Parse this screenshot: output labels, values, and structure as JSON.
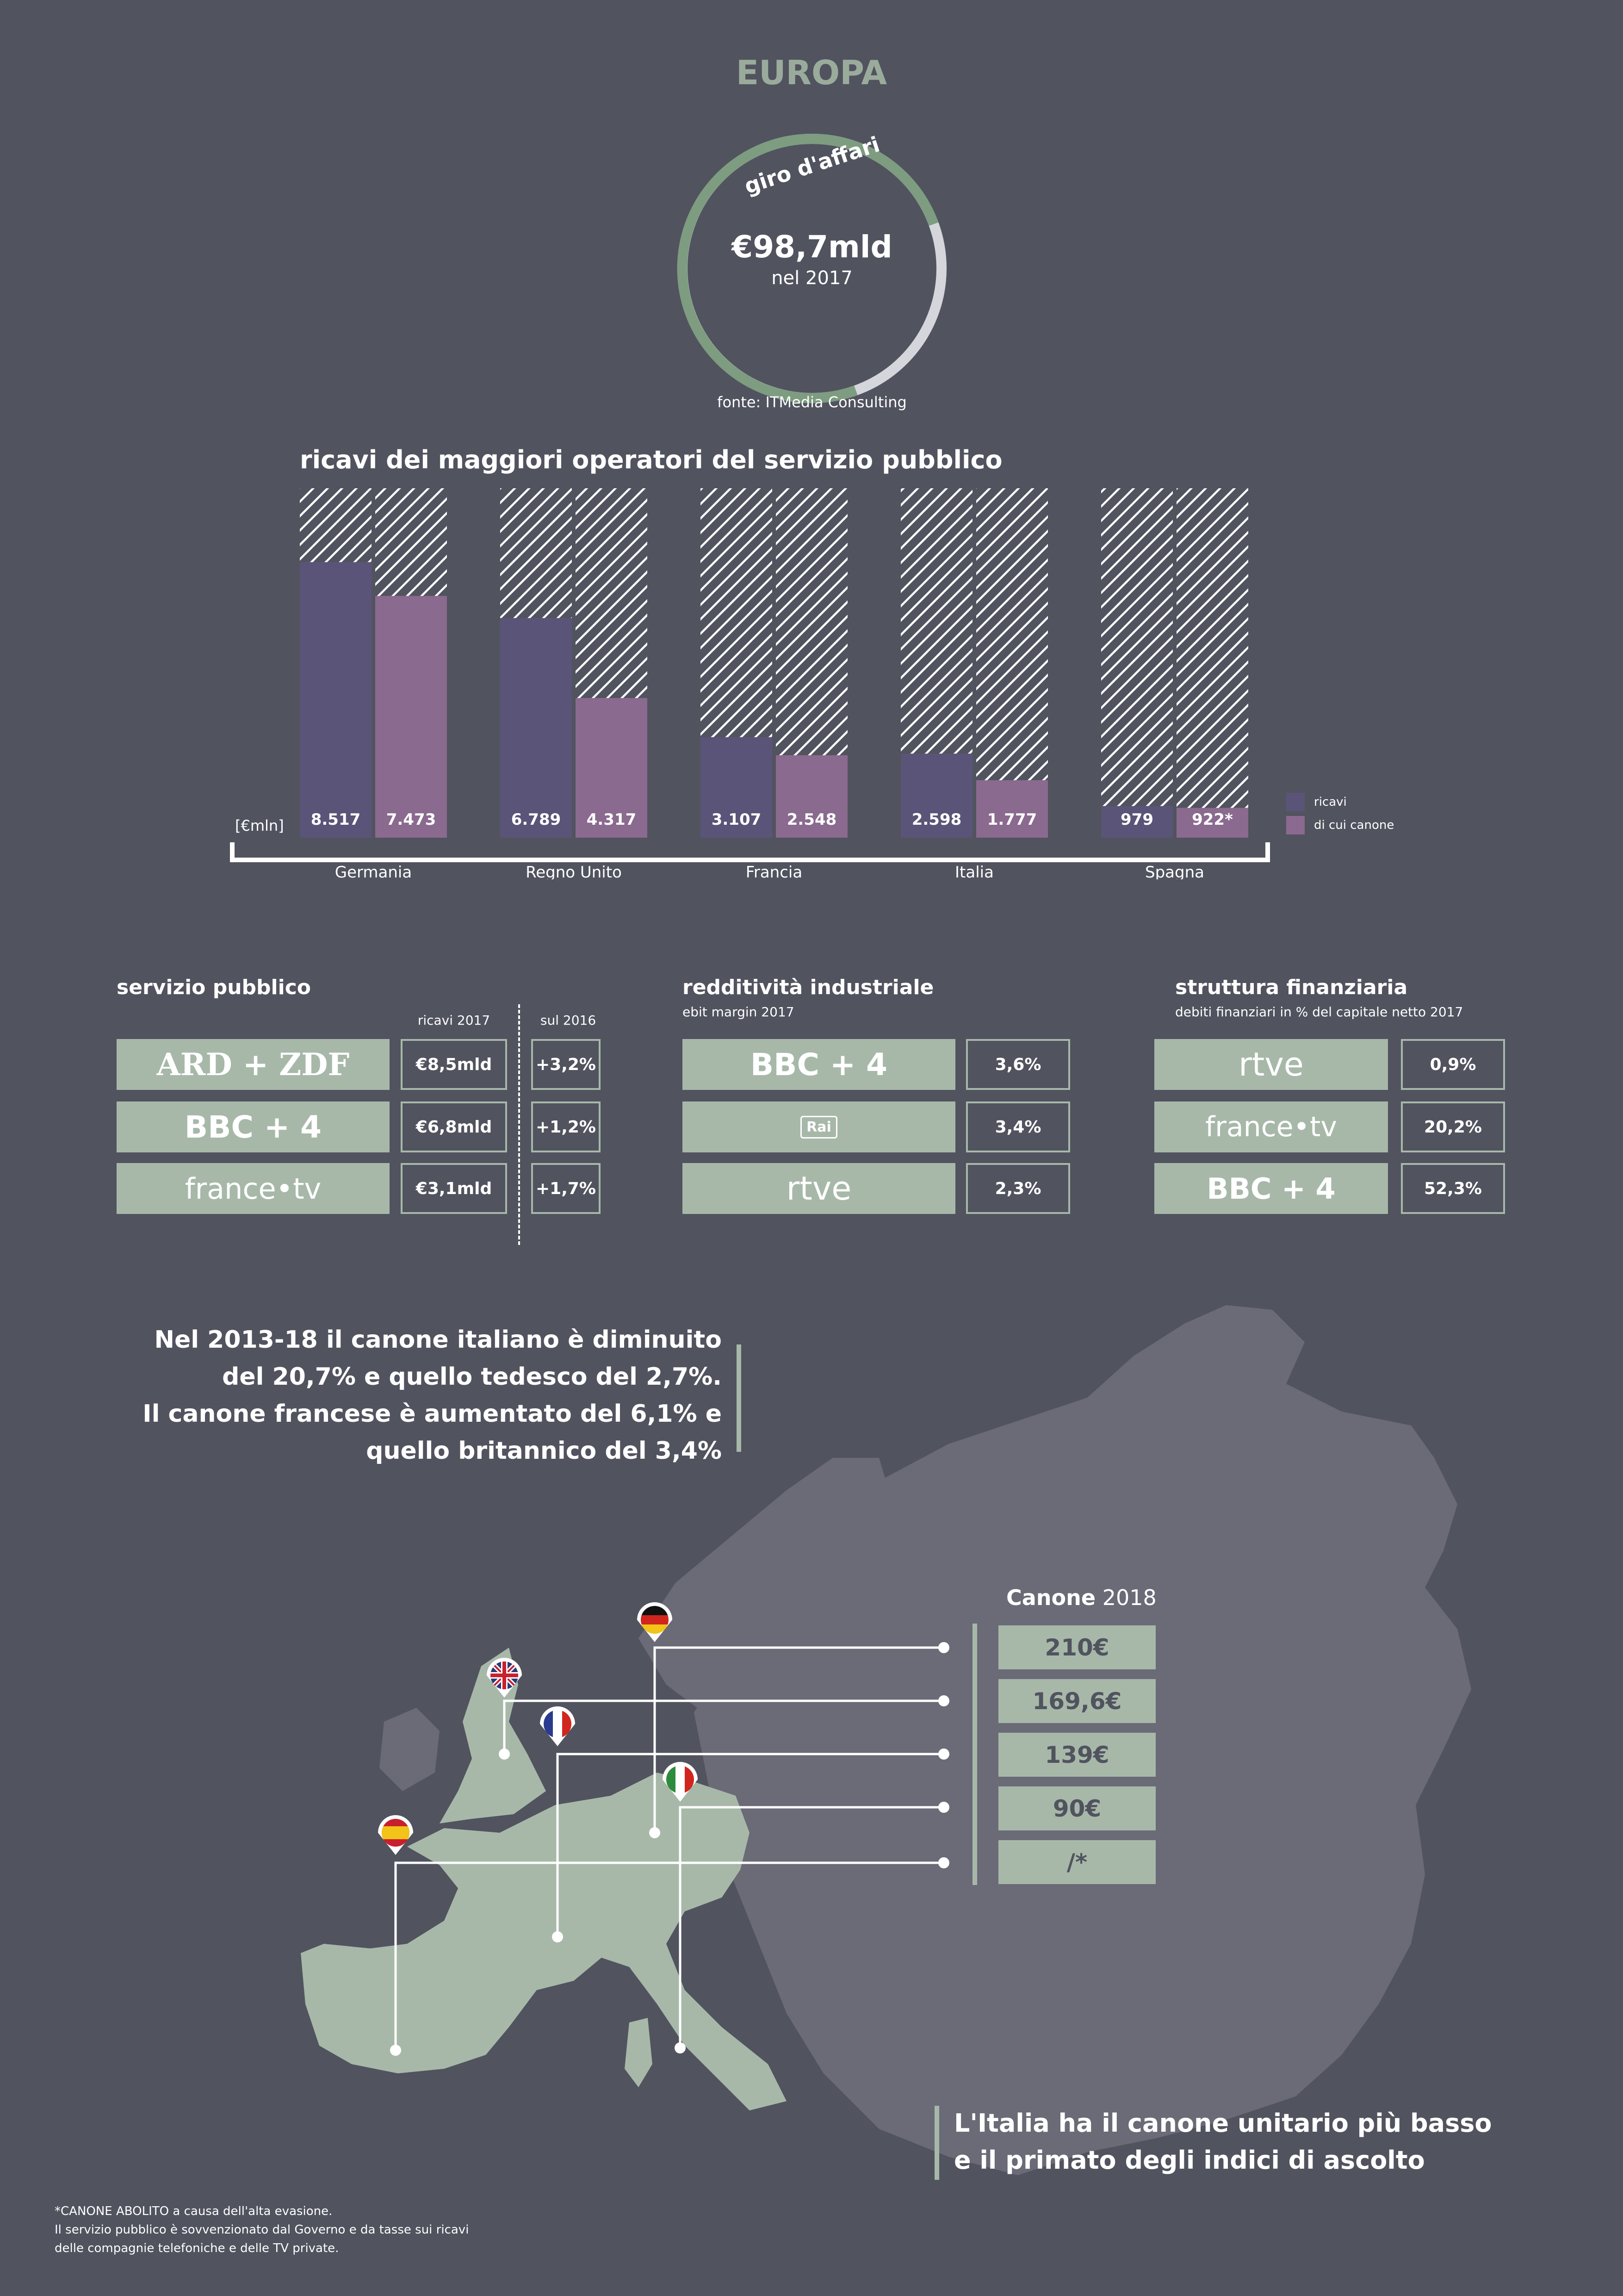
{
  "header": {
    "title": "EUROPA",
    "ring_label": "giro d'affari",
    "ring_value": "€98,7mld",
    "ring_year": "nel 2017",
    "source": "fonte: ITMedia Consulting"
  },
  "colors": {
    "background": "#51535f",
    "accent_green": "#9aab9c",
    "box_green": "#a7b8a9",
    "ricavi": "#5a5478",
    "canone": "#8b6a8f",
    "map_land": "#6a6b77",
    "map_highlight": "#a7b8a9"
  },
  "chart_data": {
    "type": "bar",
    "title": "ricavi dei maggiori operatori del servizio pubblico",
    "unit_label": "[€mln]",
    "categories": [
      "Germania",
      "Regno Unito",
      "Francia",
      "Italia",
      "Spagna"
    ],
    "series": [
      {
        "name": "ricavi",
        "values": [
          8517,
          6789,
          3107,
          2598,
          979
        ],
        "labels": [
          "8.517",
          "6.789",
          "3.107",
          "2.598",
          "979"
        ]
      },
      {
        "name": "di cui canone",
        "values": [
          7473,
          4317,
          2548,
          1777,
          922
        ],
        "labels": [
          "7.473",
          "4.317",
          "2.548",
          "1.777",
          "922*"
        ]
      }
    ],
    "ylim": [
      0,
      10800
    ],
    "legend_position": "right"
  },
  "servizio": {
    "title": "servizio pubblico",
    "col1": "ricavi 2017",
    "col2": "sul 2016",
    "rows": [
      {
        "logo": "ARD + ZDF",
        "logo_icon": "ard-zdf-logo",
        "value": "€8,5mld",
        "delta": "+3,2%"
      },
      {
        "logo": "BBC + 4",
        "logo_icon": "bbc-4-logo",
        "value": "€6,8mld",
        "delta": "+1,2%"
      },
      {
        "logo": "france•tv",
        "logo_icon": "france-tv-logo",
        "value": "€3,1mld",
        "delta": "+1,7%"
      }
    ]
  },
  "redditivita": {
    "title": "redditività industriale",
    "subtitle": "ebit margin 2017",
    "rows": [
      {
        "logo": "BBC + 4",
        "logo_icon": "bbc-4-logo",
        "value": "3,6%"
      },
      {
        "logo": "Rai",
        "logo_icon": "rai-logo",
        "value": "3,4%"
      },
      {
        "logo": "rtve",
        "logo_icon": "rtve-logo",
        "value": "2,3%"
      }
    ]
  },
  "struttura": {
    "title": "struttura finanziaria",
    "subtitle": "debiti finanziari in % del capitale netto 2017",
    "rows": [
      {
        "logo": "rtve",
        "logo_icon": "rtve-logo",
        "value": "0,9%"
      },
      {
        "logo": "france•tv",
        "logo_icon": "france-tv-logo",
        "value": "20,2%"
      },
      {
        "logo": "BBC + 4",
        "logo_icon": "bbc-4-logo",
        "value": "52,3%"
      }
    ]
  },
  "quote": {
    "line1": "Nel 2013-18 il canone italiano è diminuito",
    "line2": "del 20,7% e quello tedesco del 2,7%.",
    "line3": "Il canone francese è aumentato del 6,1% e",
    "line4": "quello britannico del 3,4%"
  },
  "canone": {
    "title_bold": "Canone",
    "title_year": "2018",
    "values": [
      "210€",
      "169,6€",
      "139€",
      "90€",
      "/*"
    ],
    "flags": [
      "germany-flag-icon",
      "uk-flag-icon",
      "france-flag-icon",
      "italy-flag-icon",
      "spain-flag-icon"
    ]
  },
  "italia_note": {
    "line1": "L'Italia ha il canone unitario più basso",
    "line2": "e il primato degli indici di ascolto"
  },
  "footnote": {
    "line1": "*CANONE ABOLITO a causa dell'alta evasione.",
    "line2": "Il servizio pubblico è sovvenzionato dal Governo e da tasse sui ricavi",
    "line3": "delle compagnie telefoniche e delle TV private."
  }
}
